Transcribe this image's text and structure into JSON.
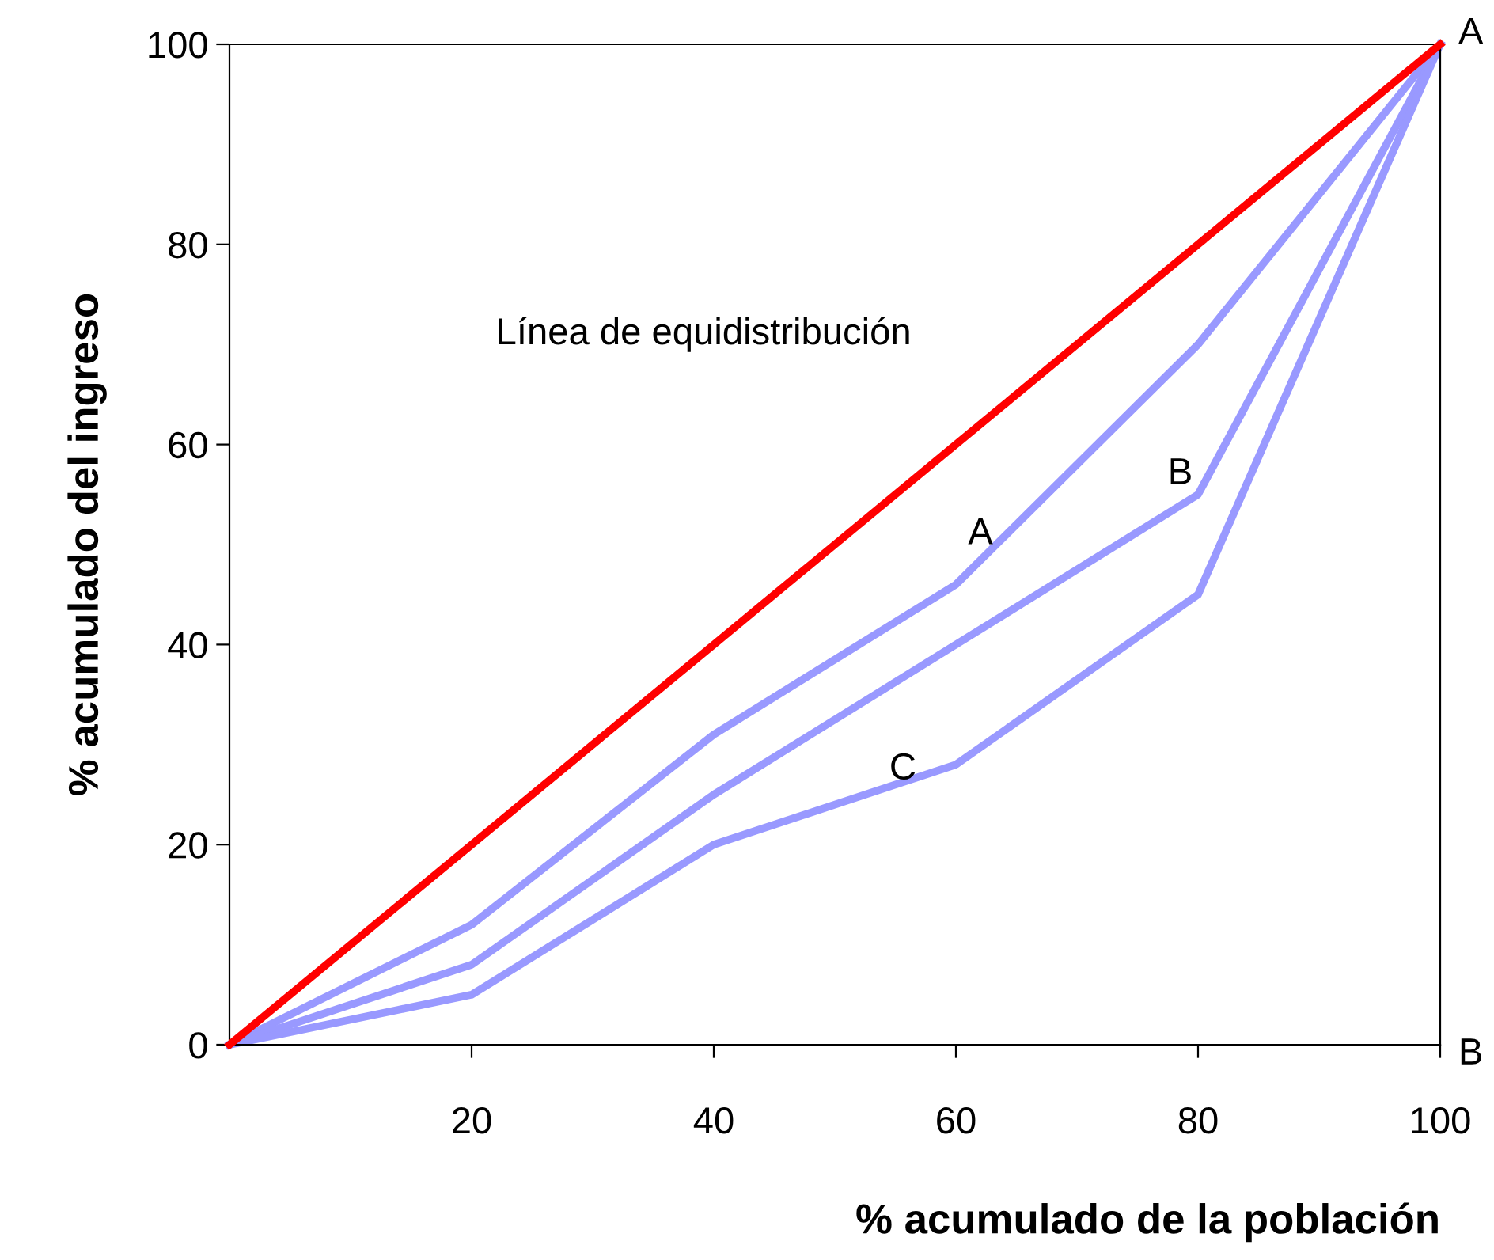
{
  "chart_data": {
    "type": "line",
    "xlabel": "% acumulado de la población",
    "ylabel": "% acumulado del ingreso",
    "x": [
      0,
      20,
      40,
      60,
      80,
      100
    ],
    "series": [
      {
        "color": "#ff0000",
        "values": [
          0,
          20,
          40,
          60,
          80,
          100
        ]
      },
      {
        "name": "A",
        "color": "#9999ff",
        "values": [
          0,
          12,
          31,
          46,
          70,
          100
        ]
      },
      {
        "name": "B",
        "color": "#9999ff",
        "values": [
          0,
          8,
          25,
          40,
          55,
          100
        ]
      },
      {
        "name": "C",
        "color": "#9999ff",
        "values": [
          0,
          5,
          20,
          28,
          45,
          100
        ]
      }
    ],
    "xlim": [
      0,
      100
    ],
    "ylim": [
      0,
      100
    ],
    "xticks": [
      20,
      40,
      60,
      80,
      100
    ],
    "yticks": [
      0,
      20,
      40,
      60,
      80,
      100
    ],
    "grid": false,
    "legend": false,
    "marker": "none",
    "line_style": "solid",
    "annotations": [
      "Línea de equidistribución",
      "A",
      "B"
    ]
  }
}
